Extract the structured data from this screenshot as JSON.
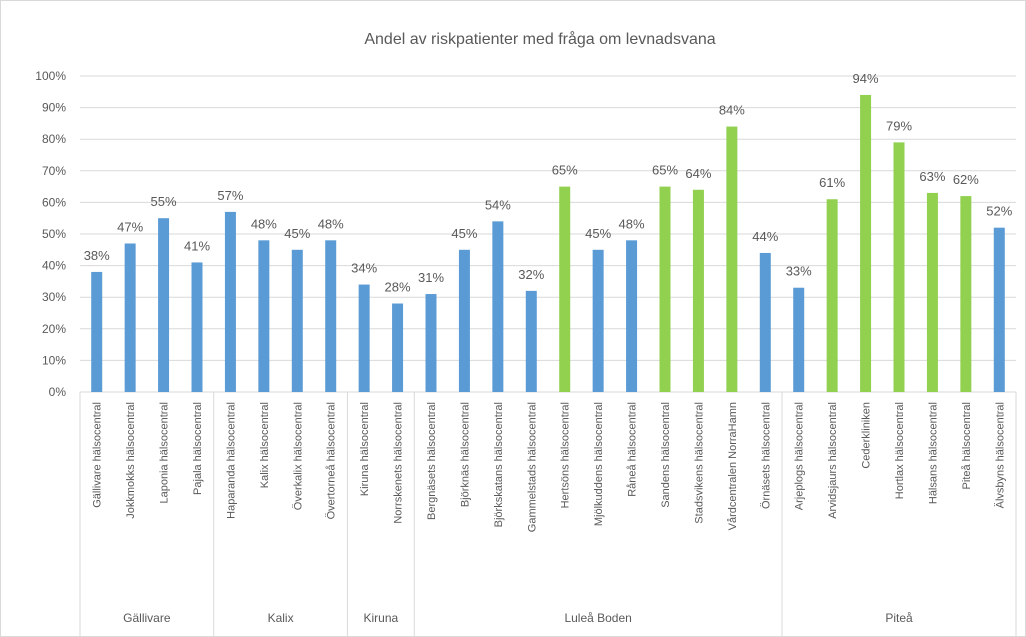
{
  "chart_data": {
    "type": "bar",
    "title": "Andel av riskpatienter med fråga om levnadsvana",
    "ylim": [
      0,
      100
    ],
    "yticks": [
      {
        "value": 0,
        "label": "0%"
      },
      {
        "value": 10,
        "label": "10%"
      },
      {
        "value": 20,
        "label": "20%"
      },
      {
        "value": 30,
        "label": "30%"
      },
      {
        "value": 40,
        "label": "40%"
      },
      {
        "value": 50,
        "label": "50%"
      },
      {
        "value": 60,
        "label": "60%"
      },
      {
        "value": 70,
        "label": "70%"
      },
      {
        "value": 80,
        "label": "80%"
      },
      {
        "value": 90,
        "label": "90%"
      },
      {
        "value": 100,
        "label": "100%"
      }
    ],
    "grid": true,
    "groups": [
      {
        "label": "Gällivare",
        "categories": [
          "Gällivare hälsocentral",
          "Jokkmokks hälsocentral",
          "Laponia hälsocentral",
          "Pajala hälsocentral"
        ],
        "values": [
          38,
          47,
          55,
          41
        ],
        "value_labels": [
          "38%",
          "47%",
          "55%",
          "41%"
        ],
        "colors": [
          "#5b9bd5",
          "#5b9bd5",
          "#5b9bd5",
          "#5b9bd5"
        ]
      },
      {
        "label": "Kalix",
        "categories": [
          "Haparanda hälsocentral",
          "Kalix hälsocentral",
          "Överkalix hälsocentral",
          "Övertorneå hälsocentral"
        ],
        "values": [
          57,
          48,
          45,
          48
        ],
        "value_labels": [
          "57%",
          "48%",
          "45%",
          "48%"
        ],
        "colors": [
          "#5b9bd5",
          "#5b9bd5",
          "#5b9bd5",
          "#5b9bd5"
        ]
      },
      {
        "label": "Kiruna",
        "categories": [
          "Kiruna hälsocentral",
          "Norrskenets hälsocentral"
        ],
        "values": [
          34,
          28
        ],
        "value_labels": [
          "34%",
          "28%"
        ],
        "colors": [
          "#5b9bd5",
          "#5b9bd5"
        ]
      },
      {
        "label": "Luleå Boden",
        "categories": [
          "Bergnäsets hälsocentral",
          "Björknäs hälsocentral",
          "Björkskatans hälsocentral",
          "Gammelstads hälsocentral",
          "Hertsöns hälsocentral",
          "Mjölkuddens hälsocentral",
          "Råneå hälsocentral",
          "Sandens hälsocentral",
          "Stadsvikens hälsocentral",
          "Vårdcentralen NorraHamn",
          "Örnäsets hälsocentral"
        ],
        "values": [
          31,
          45,
          54,
          32,
          65,
          45,
          48,
          65,
          64,
          84,
          44
        ],
        "value_labels": [
          "31%",
          "45%",
          "54%",
          "32%",
          "65%",
          "45%",
          "48%",
          "65%",
          "64%",
          "84%",
          "44%"
        ],
        "colors": [
          "#5b9bd5",
          "#5b9bd5",
          "#5b9bd5",
          "#5b9bd5",
          "#92d050",
          "#5b9bd5",
          "#5b9bd5",
          "#92d050",
          "#92d050",
          "#92d050",
          "#5b9bd5"
        ]
      },
      {
        "label": "Piteå",
        "categories": [
          "Arjeplogs hälsocentral",
          "Arvidsjaurs hälsocentral",
          "Cederkliniken",
          "Hortlax hälsocentral",
          "Hälsans hälsocentral",
          "Piteå hälsocentral",
          "Älvsbyns hälsocentral"
        ],
        "values": [
          33,
          61,
          94,
          79,
          63,
          62,
          52
        ],
        "value_labels": [
          "33%",
          "61%",
          "94%",
          "79%",
          "63%",
          "62%",
          "52%"
        ],
        "colors": [
          "#5b9bd5",
          "#92d050",
          "#92d050",
          "#92d050",
          "#92d050",
          "#92d050",
          "#5b9bd5"
        ]
      }
    ]
  }
}
